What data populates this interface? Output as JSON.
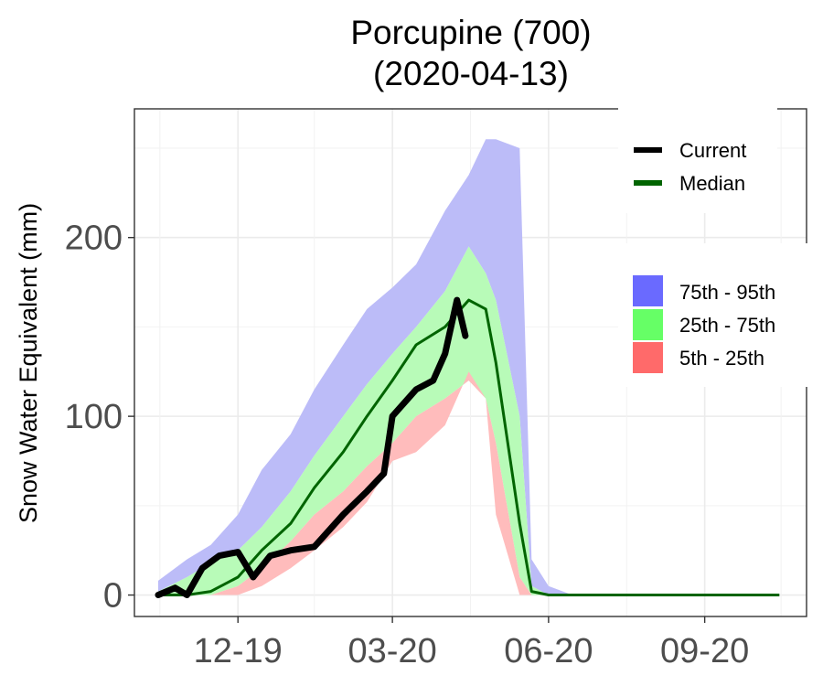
{
  "chart_data": {
    "type": "area",
    "title": "Porcupine (700)",
    "subtitle": "(2020-04-13)",
    "xlabel": "",
    "ylabel": "Snow Water Equivalent (mm)",
    "x_ticks": [
      "12-19",
      "03-20",
      "06-20",
      "09-20"
    ],
    "x_tick_dates": [
      "2019-12-01",
      "2020-03-01",
      "2020-06-01",
      "2020-09-01"
    ],
    "xlim": [
      "2019-10-01",
      "2020-10-31"
    ],
    "y_ticks": [
      0,
      100,
      200
    ],
    "ylim": [
      -12,
      272
    ],
    "grid": true,
    "legend": [
      {
        "label": "Current",
        "color": "#000000",
        "kind": "line"
      },
      {
        "label": "Median",
        "color": "#006400",
        "kind": "line"
      },
      {
        "label": "75th - 95th",
        "color": "#6a6aff",
        "kind": "fill"
      },
      {
        "label": "25th - 75th",
        "color": "#66ff66",
        "kind": "fill"
      },
      {
        "label": "5th - 25th",
        "color": "#ff6a6a",
        "kind": "fill"
      }
    ],
    "legend_position": "right",
    "band_colors": {
      "p75_95": "#bcbcf8",
      "p25_75": "#b8fbb8",
      "p05_25": "#ffbcbc"
    },
    "dates": [
      "2019-10-15",
      "2019-11-01",
      "2019-11-15",
      "2019-12-01",
      "2019-12-15",
      "2020-01-01",
      "2020-01-15",
      "2020-02-01",
      "2020-02-15",
      "2020-03-01",
      "2020-03-15",
      "2020-04-01",
      "2020-04-15",
      "2020-04-25",
      "2020-05-01",
      "2020-05-15",
      "2020-05-22",
      "2020-06-01",
      "2020-06-15",
      "2020-07-01",
      "2020-08-01",
      "2020-09-01",
      "2020-10-15"
    ],
    "p95": [
      8,
      20,
      28,
      45,
      70,
      90,
      115,
      140,
      160,
      172,
      185,
      215,
      235,
      255,
      255,
      250,
      20,
      5,
      0,
      0,
      0,
      0,
      0
    ],
    "p75": [
      2,
      10,
      18,
      25,
      38,
      58,
      78,
      100,
      118,
      135,
      150,
      170,
      195,
      180,
      165,
      100,
      5,
      0,
      0,
      0,
      0,
      0,
      0
    ],
    "p25": [
      0,
      0,
      0,
      5,
      15,
      30,
      45,
      58,
      72,
      85,
      100,
      110,
      120,
      110,
      85,
      10,
      0,
      0,
      0,
      0,
      0,
      0,
      0
    ],
    "p05": [
      0,
      0,
      0,
      0,
      5,
      15,
      25,
      38,
      52,
      75,
      80,
      95,
      125,
      110,
      45,
      0,
      0,
      0,
      0,
      0,
      0,
      0,
      0
    ],
    "median": [
      0,
      0,
      2,
      10,
      25,
      40,
      60,
      80,
      100,
      120,
      140,
      150,
      165,
      160,
      130,
      40,
      2,
      0,
      0,
      0,
      0,
      0,
      0
    ],
    "current_dates": [
      "2019-10-15",
      "2019-10-25",
      "2019-11-01",
      "2019-11-10",
      "2019-11-20",
      "2019-12-01",
      "2019-12-10",
      "2019-12-20",
      "2020-01-01",
      "2020-01-15",
      "2020-02-01",
      "2020-02-15",
      "2020-02-25",
      "2020-03-01",
      "2020-03-15",
      "2020-03-25",
      "2020-04-01",
      "2020-04-08",
      "2020-04-13"
    ],
    "current": [
      0,
      4,
      0,
      15,
      22,
      24,
      10,
      22,
      25,
      27,
      45,
      58,
      68,
      100,
      115,
      120,
      135,
      165,
      145
    ]
  }
}
